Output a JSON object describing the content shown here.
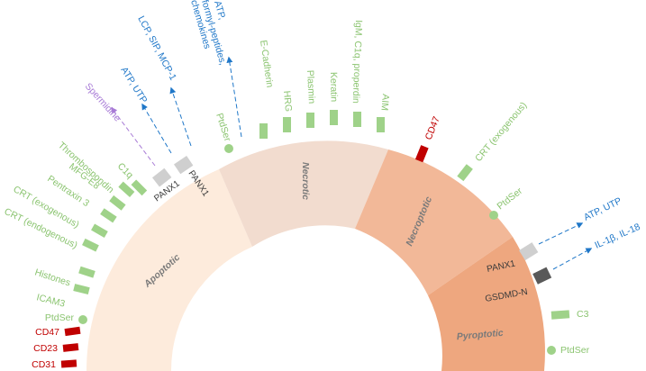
{
  "colors": {
    "apoptotic": "#fdebdc",
    "necrotic": "#f2dccf",
    "necroptotic": "#f2b898",
    "pyroptotic": "#eea77f",
    "green": "#8bc470",
    "green_marker": "#9fd289",
    "red": "#c00000",
    "blue": "#1f77c8",
    "purple": "#a87bd6",
    "gray_block": "#cfcfcf",
    "dark_block": "#595959"
  },
  "sectors": {
    "apoptotic": "Apoptotic",
    "necrotic": "Necrotic",
    "necroptotic": "Necroptotic",
    "pyroptotic": "Pyroptotic"
  },
  "channels": {
    "panx1_a": "PANX1",
    "panx1_b": "PANX1",
    "panx1_c": "PANX1",
    "gsdmd": "GSDMD-N"
  },
  "apoptotic_labels": {
    "cd31": "CD31",
    "cd23": "CD23",
    "cd47": "CD47",
    "ptdser": "PtdSer",
    "icam3": "ICAM3",
    "histones": "Histones",
    "crt_endo": "CRT (endogenous)",
    "crt_exo": "CRT (exogenous)",
    "pentraxin": "Pentraxin 3",
    "mfge8": "MFG-E8",
    "thrombospondin": "Thrombospondin",
    "c1q": "C1q",
    "ptdser_top": "PtdSer"
  },
  "released": {
    "spermidine": "Spermidine",
    "atp_utp": "ATP, UTP",
    "lcp": "LCP, SIP, MCP-1",
    "atp_formyl": [
      "ATP,",
      "formyl-peptides,",
      "chemokines"
    ]
  },
  "necrotic_labels": {
    "ecadherin": "E-Cadherin",
    "hrg": "HRG",
    "plasmin": "Plasmin",
    "keratin": "Keratin",
    "igm": "IgM, C1q, properdin",
    "aim": "AIM"
  },
  "necroptotic_labels": {
    "cd47": "CD47",
    "crt_exo": "CRT (exogenous)",
    "ptdser": "PtdSer",
    "atp_utp": "ATP, UTP"
  },
  "pyroptotic_labels": {
    "il": "IL-1β, IL-18",
    "c3": "C3",
    "ptdser": "PtdSer"
  }
}
